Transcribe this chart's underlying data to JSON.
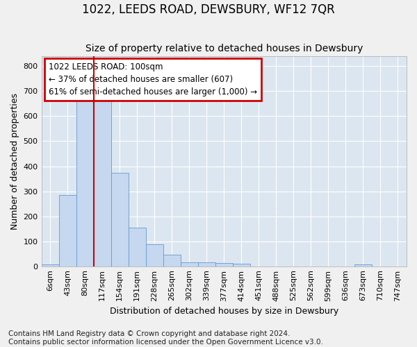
{
  "title": "1022, LEEDS ROAD, DEWSBURY, WF12 7QR",
  "subtitle": "Size of property relative to detached houses in Dewsbury",
  "xlabel": "Distribution of detached houses by size in Dewsbury",
  "ylabel": "Number of detached properties",
  "footnote1": "Contains HM Land Registry data © Crown copyright and database right 2024.",
  "footnote2": "Contains public sector information licensed under the Open Government Licence v3.0.",
  "bin_labels": [
    "6sqm",
    "43sqm",
    "80sqm",
    "117sqm",
    "154sqm",
    "191sqm",
    "228sqm",
    "265sqm",
    "302sqm",
    "339sqm",
    "377sqm",
    "414sqm",
    "451sqm",
    "488sqm",
    "525sqm",
    "562sqm",
    "599sqm",
    "636sqm",
    "673sqm",
    "710sqm",
    "747sqm"
  ],
  "bar_heights": [
    8,
    285,
    665,
    665,
    375,
    155,
    88,
    45,
    17,
    17,
    13,
    10,
    0,
    0,
    0,
    0,
    0,
    0,
    8,
    0,
    0
  ],
  "bar_color": "#c5d8f0",
  "bar_edge_color": "#6699cc",
  "red_line_x": 2.5,
  "annotation_text": "1022 LEEDS ROAD: 100sqm\n← 37% of detached houses are smaller (607)\n61% of semi-detached houses are larger (1,000) →",
  "annotation_box_color": "#ffffff",
  "annotation_box_edge": "#cc0000",
  "red_line_color": "#cc0000",
  "ylim": [
    0,
    840
  ],
  "yticks": [
    0,
    100,
    200,
    300,
    400,
    500,
    600,
    700,
    800
  ],
  "background_color": "#dce6f0",
  "grid_color": "#ffffff",
  "title_fontsize": 12,
  "subtitle_fontsize": 10,
  "axis_label_fontsize": 9,
  "tick_fontsize": 8,
  "footnote_fontsize": 7.5,
  "fig_facecolor": "#f0f0f0"
}
